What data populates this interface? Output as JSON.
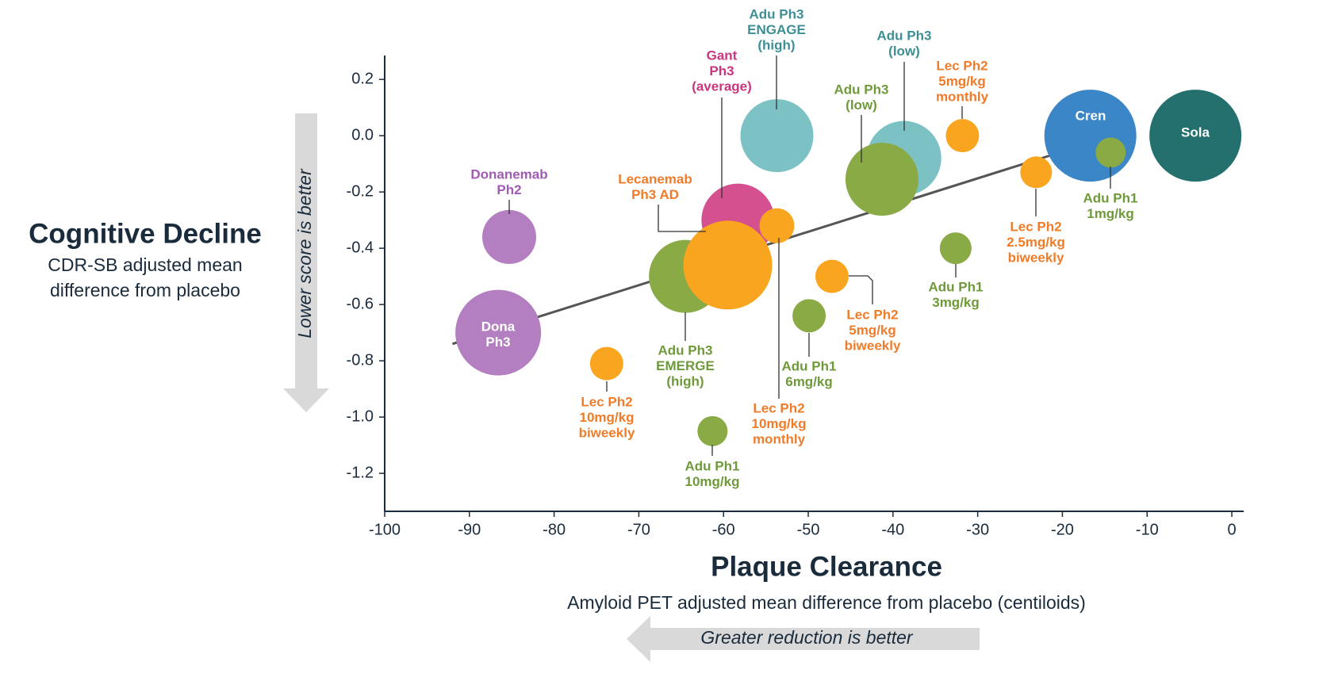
{
  "chart_data": {
    "type": "bubble",
    "y_title": "Cognitive Decline",
    "y_subtitle": [
      "CDR-SB adjusted mean",
      "difference from placebo"
    ],
    "y_note": "Lower score is better",
    "x_title": "Plaque Clearance",
    "x_subtitle": "Amyloid PET adjusted mean difference from placebo (centiloids)",
    "x_note": "Greater reduction is better",
    "xlim": [
      -100,
      1.4
    ],
    "ylim": [
      -1.335,
      0.285
    ],
    "xticks": [
      -100,
      -90,
      -80,
      -70,
      -60,
      -50,
      -40,
      -30,
      -20,
      -10,
      0
    ],
    "yticks": [
      0.2,
      {
        "value": 0,
        "label": "0.0"
      },
      -0.2,
      -0.4,
      -0.6,
      -0.8,
      {
        "value": -1,
        "label": "-1.0"
      },
      -1.2
    ],
    "trendline": {
      "color": "#555555",
      "x": [
        -92,
        -21.4
      ],
      "y": [
        -0.74,
        -0.07
      ]
    },
    "points": [
      {
        "label": [
          "Donanemab",
          "Ph2"
        ],
        "x": -85.3,
        "y": -0.36,
        "size": 34,
        "color": "#b47fc0",
        "label_color": "#a05cb4"
      },
      {
        "label": [
          "Dona",
          "Ph3"
        ],
        "x": -86.6,
        "y": -0.7,
        "size": 54,
        "color": "#b47fc0",
        "label_color": "#ffffff"
      },
      {
        "label": [
          "Lec Ph2",
          "10mg/kg",
          "biweekly"
        ],
        "x": -73.8,
        "y": -0.81,
        "size": 21,
        "color": "#f9a51f",
        "label_color": "#f07c2a"
      },
      {
        "label": [
          "Adu Ph3",
          "EMERGE",
          "(high)"
        ],
        "x": -64.5,
        "y": -0.5,
        "size": 46,
        "color": "#8aaa45",
        "label_color": "#6f9a3a"
      },
      {
        "label": [
          "Gant",
          "Ph3",
          "(average)"
        ],
        "x": -58.3,
        "y": -0.3,
        "size": 46,
        "color": "#d4508f",
        "label_color": "#c9357e"
      },
      {
        "label": [
          "Lec Ph2",
          "10mg/kg",
          "monthly"
        ],
        "x": -53.7,
        "y": -0.32,
        "size": 22,
        "color": "#f9a51f",
        "label_color": "#f07c2a"
      },
      {
        "label": [
          "Lecanemab",
          "Ph3 AD"
        ],
        "x": -59.5,
        "y": -0.46,
        "size": 56,
        "color": "#f9a51f",
        "label_color": "#f07c2a"
      },
      {
        "label": [
          "Adu Ph1",
          "10mg/kg"
        ],
        "x": -61.3,
        "y": -1.05,
        "size": 19,
        "color": "#8aaa45",
        "label_color": "#6f9a3a"
      },
      {
        "label": [
          "Adu Ph3",
          "ENGAGE",
          "(high)"
        ],
        "x": -53.7,
        "y": 0,
        "size": 46,
        "color": "#7cc1c4",
        "label_color": "#3d8f96"
      },
      {
        "label": [
          "Lec Ph2",
          "5mg/kg",
          "biweekly"
        ],
        "x": -47.2,
        "y": -0.5,
        "size": 21,
        "color": "#f9a51f",
        "label_color": "#f07c2a"
      },
      {
        "label": [
          "Adu Ph1",
          "6mg/kg"
        ],
        "x": -49.9,
        "y": -0.64,
        "size": 21,
        "color": "#8aaa45",
        "label_color": "#6f9a3a"
      },
      {
        "label": [
          "Adu Ph3",
          "(low)"
        ],
        "x": -38.7,
        "y": -0.08,
        "size": 47,
        "color": "#7cc1c4",
        "label_color": "#3d8f96"
      },
      {
        "label": [
          "Adu Ph3",
          "(low)"
        ],
        "x": -41.3,
        "y": -0.155,
        "size": 46,
        "color": "#8aaa45",
        "label_color": "#6f9a3a"
      },
      {
        "label": [
          "Lec Ph2",
          "5mg/kg",
          "monthly"
        ],
        "x": -31.8,
        "y": 0,
        "size": 21,
        "color": "#f9a51f",
        "label_color": "#f07c2a"
      },
      {
        "label": [
          "Adu Ph1",
          "3mg/kg"
        ],
        "x": -32.6,
        "y": -0.4,
        "size": 20,
        "color": "#8aaa45",
        "label_color": "#6f9a3a"
      },
      {
        "label": [
          "Lec Ph2",
          "2.5mg/kg",
          "biweekly"
        ],
        "x": -23.1,
        "y": -0.13,
        "size": 20,
        "color": "#f9a51f",
        "label_color": "#f07c2a"
      },
      {
        "label": [
          "Cren"
        ],
        "x": -16.7,
        "y": 0,
        "size": 58,
        "color": "#3b86c6",
        "label_color": "#ffffff"
      },
      {
        "label": [
          "Adu Ph1",
          "1mg/kg"
        ],
        "x": -14.3,
        "y": -0.06,
        "size": 19,
        "color": "#8aaa45",
        "label_color": "#6f9a3a"
      },
      {
        "label": [
          "Sola"
        ],
        "x": -4.3,
        "y": 0,
        "size": 58,
        "color": "#23706f",
        "label_color": "#ffffff"
      }
    ]
  }
}
